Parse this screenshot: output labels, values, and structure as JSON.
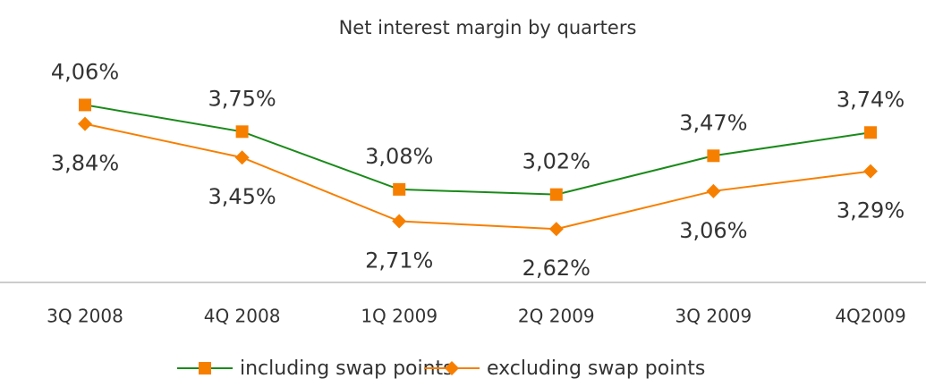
{
  "chart_data": {
    "type": "line",
    "title": "Net interest margin by quarters",
    "categories": [
      "3Q 2008",
      "4Q 2008",
      "1Q 2009",
      "2Q 2009",
      "3Q 2009",
      "4Q2009"
    ],
    "series": [
      {
        "name": "including swap points",
        "color": "#1a8a1a",
        "marker": "square",
        "marker_color": "#f77f00",
        "values": [
          4.06,
          3.75,
          3.08,
          3.02,
          3.47,
          3.74
        ],
        "value_labels": [
          "4,06%",
          "3,75%",
          "3,08%",
          "3,02%",
          "3,47%",
          "3,74%"
        ]
      },
      {
        "name": "excluding swap points",
        "color": "#f77f00",
        "marker": "diamond",
        "marker_color": "#f77f00",
        "values": [
          3.84,
          3.45,
          2.71,
          2.62,
          3.06,
          3.29
        ],
        "value_labels": [
          "3,84%",
          "3,45%",
          "2,71%",
          "2,62%",
          "3,06%",
          "3,29%"
        ]
      }
    ],
    "ylim": [
      2,
      4.5
    ],
    "legend": "bottom"
  }
}
